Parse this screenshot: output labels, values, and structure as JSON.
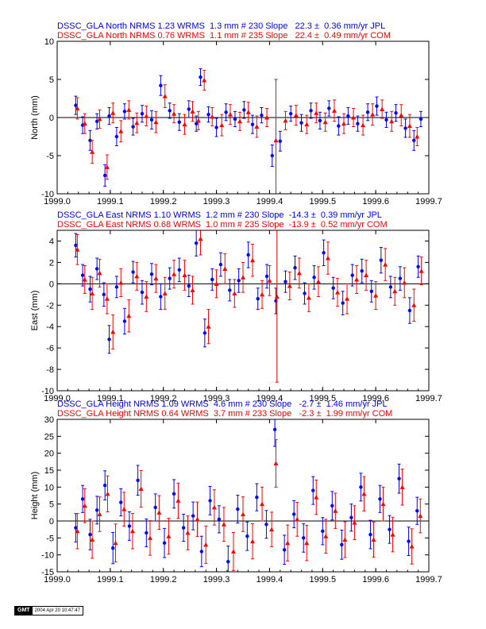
{
  "colors": {
    "series_jpl": "#0000ff",
    "series_com": "#ff0000",
    "axis": "#000000",
    "frame": "#000000"
  },
  "footer": {
    "logo": "GMT",
    "timestamp": "2004 Apr 20 10:47:47"
  },
  "chart_data": [
    {
      "type": "scatter",
      "header": [
        "DSSC_GLA North NRMS 1.23 WRMS  1.3 mm # 230 Slope   22.3 ±  0.36 mm/yr JPL",
        "DSSC_GLA North NRMS 0.76 WRMS  1.1 mm # 235 Slope   22.4 ±  0.49 mm/yr COM"
      ],
      "ylabel": "North (mm)",
      "xlim": [
        1999.0,
        1999.7
      ],
      "ylim": [
        -10,
        10
      ],
      "x_ticks": [
        "1999.0",
        "1999.1",
        "1999.2",
        "1999.3",
        "1999.4",
        "1999.5",
        "1999.6",
        "1999.7"
      ],
      "y_ticks": [
        "-10",
        "-5",
        "0",
        "5",
        "10"
      ],
      "series": [
        {
          "name": "JPL",
          "marker": "circle",
          "color": "#0000ff",
          "x": [
            1999.035,
            1999.048,
            1999.062,
            1999.075,
            1999.09,
            1999.098,
            1999.112,
            1999.127,
            1999.143,
            1999.16,
            1999.178,
            1999.195,
            1999.212,
            1999.23,
            1999.248,
            1999.262,
            1999.27,
            1999.285,
            1999.3,
            1999.318,
            1999.335,
            1999.352,
            1999.368,
            1999.385,
            1999.405,
            1999.42,
            1999.44,
            1999.46,
            1999.478,
            1999.495,
            1999.512,
            1999.53,
            1999.548,
            1999.566,
            1999.585,
            1999.602,
            1999.62,
            1999.638,
            1999.656,
            1999.672,
            1999.685
          ],
          "y": [
            1.6,
            -1.0,
            -3.0,
            -0.5,
            -7.6,
            0.2,
            -2.5,
            0.8,
            -1.2,
            0.5,
            -0.3,
            4.2,
            0.9,
            -0.6,
            1.1,
            -0.8,
            5.3,
            0.4,
            -1.3,
            0.7,
            -0.2,
            1.0,
            -0.9,
            0.3,
            -5.0,
            -3.1,
            0.5,
            -0.7,
            0.9,
            -0.4,
            1.2,
            -1.1,
            0.2,
            -0.8,
            0.7,
            1.5,
            -0.3,
            0.6,
            -1.4,
            -3.0,
            -0.2
          ],
          "err": [
            1.2,
            1.1,
            1.3,
            1.0,
            1.4,
            1.1,
            1.2,
            1.0,
            1.1,
            1.1,
            1.2,
            1.3,
            1.0,
            1.1,
            1.1,
            1.0,
            1.1,
            1.0,
            1.2,
            1.1,
            1.0,
            1.1,
            1.2,
            1.0,
            1.4,
            1.3,
            1.0,
            1.1,
            1.0,
            1.1,
            1.0,
            1.2,
            1.1,
            1.0,
            1.1,
            1.2,
            1.0,
            1.1,
            1.2,
            1.3,
            1.0
          ]
        },
        {
          "name": "COM",
          "marker": "triangle",
          "color": "#ff0000",
          "x": [
            1999.038,
            1999.052,
            1999.066,
            1999.08,
            1999.094,
            1999.105,
            1999.12,
            1999.135,
            1999.15,
            1999.168,
            1999.186,
            1999.203,
            1999.22,
            1999.24,
            1999.255,
            1999.266,
            1999.277,
            1999.292,
            1999.31,
            1999.326,
            1999.344,
            1999.36,
            1999.376,
            1999.395,
            1999.412,
            1999.43,
            1999.45,
            1999.47,
            1999.488,
            1999.505,
            1999.522,
            1999.54,
            1999.558,
            1999.576,
            1999.594,
            1999.612,
            1999.63,
            1999.648,
            1999.664,
            1999.678
          ],
          "y": [
            1.2,
            -0.8,
            -4.5,
            -0.2,
            -6.5,
            0.6,
            -1.8,
            1.0,
            -0.7,
            0.2,
            -0.6,
            2.8,
            0.5,
            -0.9,
            0.8,
            -0.4,
            4.9,
            0.1,
            -1.0,
            0.4,
            -0.5,
            0.7,
            -1.2,
            0.0,
            -3.0,
            -0.4,
            0.3,
            -0.9,
            0.6,
            -0.6,
            0.9,
            -0.8,
            0.0,
            -1.0,
            0.4,
            1.1,
            -0.5,
            0.3,
            -1.1,
            -2.5
          ],
          "err": [
            1.4,
            1.3,
            1.5,
            1.2,
            1.6,
            1.3,
            1.4,
            1.2,
            1.3,
            1.3,
            1.4,
            1.5,
            1.2,
            1.3,
            1.3,
            1.2,
            1.3,
            1.2,
            1.4,
            1.3,
            1.2,
            1.3,
            1.4,
            1.2,
            8.0,
            1.2,
            1.3,
            1.2,
            1.3,
            1.2,
            1.4,
            1.3,
            1.2,
            1.3,
            1.4,
            1.2,
            1.3,
            1.4,
            1.5,
            1.2
          ]
        }
      ]
    },
    {
      "type": "scatter",
      "header": [
        "DSSC_GLA East NRMS 1.10 WRMS  1.2 mm # 230 Slope  -14.3 ±  0.39 mm/yr JPL",
        "DSSC_GLA East NRMS 0.68 WRMS  1.0 mm # 235 Slope  -13.9 ±  0.52 mm/yr COM"
      ],
      "ylabel": "East (mm)",
      "xlim": [
        1999.0,
        1999.7
      ],
      "ylim": [
        -10,
        5
      ],
      "x_ticks": [
        "1999.0",
        "1999.1",
        "1999.2",
        "1999.3",
        "1999.4",
        "1999.5",
        "1999.6",
        "1999.7"
      ],
      "y_ticks": [
        "-10",
        "-8",
        "-6",
        "-4",
        "-2",
        "0",
        "2",
        "4"
      ],
      "series": [
        {
          "name": "JPL",
          "marker": "circle",
          "color": "#0000ff",
          "x": [
            1999.035,
            1999.048,
            1999.062,
            1999.075,
            1999.088,
            1999.098,
            1999.112,
            1999.127,
            1999.143,
            1999.16,
            1999.178,
            1999.195,
            1999.212,
            1999.23,
            1999.248,
            1999.262,
            1999.278,
            1999.292,
            1999.308,
            1999.325,
            1999.342,
            1999.36,
            1999.378,
            1999.395,
            1999.412,
            1999.43,
            1999.448,
            1999.466,
            1999.484,
            1999.502,
            1999.52,
            1999.538,
            1999.556,
            1999.574,
            1999.592,
            1999.61,
            1999.628,
            1999.646,
            1999.664,
            1999.68
          ],
          "y": [
            3.6,
            0.8,
            -0.5,
            1.4,
            -1.0,
            -5.2,
            -0.3,
            -3.5,
            1.1,
            -0.8,
            0.9,
            -1.2,
            0.5,
            1.3,
            -0.2,
            3.8,
            -4.6,
            0.4,
            1.8,
            -0.6,
            0.3,
            2.7,
            -1.4,
            0.7,
            -1.6,
            0.2,
            1.5,
            -0.9,
            0.6,
            2.9,
            -0.4,
            -1.8,
            0.8,
            1.2,
            -0.7,
            2.2,
            -0.3,
            0.5,
            -2.5,
            1.6
          ],
          "err": [
            1.1,
            1.0,
            1.2,
            1.0,
            1.1,
            1.3,
            1.0,
            1.2,
            1.0,
            1.1,
            1.0,
            1.2,
            1.0,
            1.1,
            1.0,
            1.2,
            1.3,
            1.0,
            1.1,
            1.0,
            1.1,
            1.2,
            1.0,
            1.1,
            1.2,
            1.0,
            1.1,
            1.0,
            1.1,
            1.2,
            1.0,
            1.1,
            1.0,
            1.1,
            1.0,
            1.2,
            1.0,
            1.1,
            1.2,
            1.0
          ]
        },
        {
          "name": "COM",
          "marker": "triangle",
          "color": "#ff0000",
          "x": [
            1999.038,
            1999.052,
            1999.066,
            1999.08,
            1999.094,
            1999.105,
            1999.12,
            1999.135,
            1999.15,
            1999.168,
            1999.186,
            1999.203,
            1999.22,
            1999.24,
            1999.255,
            1999.27,
            1999.285,
            1999.3,
            1999.316,
            1999.334,
            1999.35,
            1999.368,
            1999.386,
            1999.4,
            1999.414,
            1999.438,
            1999.456,
            1999.474,
            1999.492,
            1999.51,
            1999.528,
            1999.546,
            1999.564,
            1999.582,
            1999.6,
            1999.618,
            1999.636,
            1999.654,
            1999.672,
            1999.686
          ],
          "y": [
            3.2,
            0.4,
            -0.9,
            1.0,
            -1.4,
            -4.5,
            0.1,
            -3.0,
            0.7,
            -1.2,
            0.5,
            -0.9,
            0.9,
            0.8,
            -0.6,
            4.2,
            -4.0,
            0.0,
            1.4,
            -0.9,
            0.6,
            2.2,
            -1.0,
            0.3,
            -1.2,
            -0.2,
            1.0,
            -1.3,
            0.2,
            2.4,
            -0.8,
            -1.4,
            0.4,
            0.8,
            -1.1,
            1.8,
            -0.7,
            0.1,
            -2.0,
            1.2
          ],
          "err": [
            1.4,
            1.3,
            1.5,
            1.3,
            1.4,
            1.6,
            1.3,
            1.5,
            1.3,
            1.4,
            1.3,
            1.5,
            1.3,
            1.4,
            1.3,
            1.5,
            1.6,
            1.3,
            1.4,
            1.3,
            1.4,
            1.5,
            1.3,
            1.4,
            8.0,
            1.3,
            1.4,
            1.3,
            1.4,
            1.5,
            1.3,
            1.4,
            1.3,
            1.4,
            1.3,
            1.5,
            1.3,
            1.4,
            1.5,
            1.3
          ]
        }
      ]
    },
    {
      "type": "scatter",
      "header": [
        "DSSC_GLA Height NRMS 1.09 WRMS  4.6 mm # 230 Slope   -2.7 ±  1.46 mm/yr JPL",
        "DSSC_GLA Height NRMS 0.64 WRMS  3.7 mm # 233 Slope   -2.3 ±  1.99 mm/yr COM"
      ],
      "ylabel": "Height (mm)",
      "xlim": [
        1999.0,
        1999.7
      ],
      "ylim": [
        -15,
        30
      ],
      "x_ticks": [
        "1999.0",
        "1999.1",
        "1999.2",
        "1999.3",
        "1999.4",
        "1999.5",
        "1999.6",
        "1999.7"
      ],
      "y_ticks": [
        "-15",
        "-10",
        "-5",
        "0",
        "5",
        "10",
        "15",
        "20",
        "25",
        "30"
      ],
      "series": [
        {
          "name": "JPL",
          "marker": "circle",
          "color": "#0000ff",
          "x": [
            1999.035,
            1999.048,
            1999.062,
            1999.075,
            1999.09,
            1999.105,
            1999.12,
            1999.136,
            1999.152,
            1999.168,
            1999.185,
            1999.202,
            1999.22,
            1999.238,
            1999.256,
            1999.272,
            1999.288,
            1999.305,
            1999.322,
            1999.34,
            1999.358,
            1999.376,
            1999.394,
            1999.41,
            1999.428,
            1999.446,
            1999.464,
            1999.482,
            1999.5,
            1999.518,
            1999.536,
            1999.554,
            1999.572,
            1999.59,
            1999.608,
            1999.626,
            1999.644,
            1999.662,
            1999.678
          ],
          "y": [
            -2.0,
            6.5,
            -4.0,
            3.2,
            10.5,
            -8.0,
            5.5,
            -1.5,
            12.0,
            -3.5,
            4.0,
            -6.5,
            8.0,
            -2.0,
            1.5,
            -9.0,
            6.0,
            0.5,
            -12.0,
            3.5,
            -4.5,
            7.0,
            -1.0,
            27.0,
            -8.5,
            2.0,
            -5.0,
            9.0,
            -3.0,
            4.5,
            -7.0,
            1.0,
            10.0,
            -4.0,
            6.5,
            -2.5,
            12.5,
            -6.0,
            3.0
          ],
          "err": [
            4.2,
            4.0,
            4.5,
            4.1,
            4.3,
            4.6,
            4.0,
            4.2,
            4.4,
            4.1,
            4.0,
            4.3,
            4.2,
            4.0,
            4.1,
            4.5,
            4.2,
            4.0,
            4.6,
            4.1,
            4.2,
            4.0,
            4.1,
            5.0,
            4.3,
            4.0,
            4.2,
            4.1,
            4.0,
            4.2,
            4.3,
            4.0,
            4.1,
            4.2,
            4.0,
            4.1,
            4.3,
            4.2,
            4.0
          ]
        },
        {
          "name": "COM",
          "marker": "triangle",
          "color": "#ff0000",
          "x": [
            1999.038,
            1999.052,
            1999.066,
            1999.08,
            1999.095,
            1999.11,
            1999.126,
            1999.142,
            1999.158,
            1999.175,
            1999.192,
            1999.21,
            1999.228,
            1999.246,
            1999.264,
            1999.28,
            1999.296,
            1999.314,
            1999.332,
            1999.35,
            1999.368,
            1999.386,
            1999.404,
            1999.412,
            1999.434,
            1999.452,
            1999.47,
            1999.488,
            1999.506,
            1999.524,
            1999.542,
            1999.56,
            1999.578,
            1999.596,
            1999.614,
            1999.632,
            1999.65,
            1999.668,
            1999.684
          ],
          "y": [
            -3.0,
            4.5,
            -5.5,
            2.0,
            8.0,
            -6.5,
            3.5,
            -3.0,
            9.5,
            -5.0,
            2.5,
            -4.5,
            6.0,
            -3.5,
            0.5,
            -7.0,
            4.0,
            -1.0,
            -9.0,
            2.0,
            -6.0,
            5.0,
            -2.5,
            17.0,
            -6.5,
            0.5,
            -6.5,
            7.0,
            -4.5,
            3.0,
            -5.5,
            -0.5,
            8.0,
            -5.5,
            5.0,
            -4.0,
            10.0,
            -7.5,
            1.5
          ],
          "err": [
            5.2,
            5.0,
            5.5,
            5.1,
            5.3,
            5.6,
            5.0,
            5.2,
            5.4,
            5.1,
            5.0,
            5.3,
            5.2,
            5.0,
            5.1,
            5.5,
            5.2,
            5.0,
            5.6,
            5.1,
            5.2,
            5.0,
            5.1,
            7.0,
            5.3,
            5.0,
            5.2,
            5.1,
            5.0,
            5.2,
            5.3,
            5.0,
            5.1,
            5.2,
            5.0,
            5.1,
            5.3,
            5.2,
            5.0
          ]
        }
      ]
    }
  ]
}
